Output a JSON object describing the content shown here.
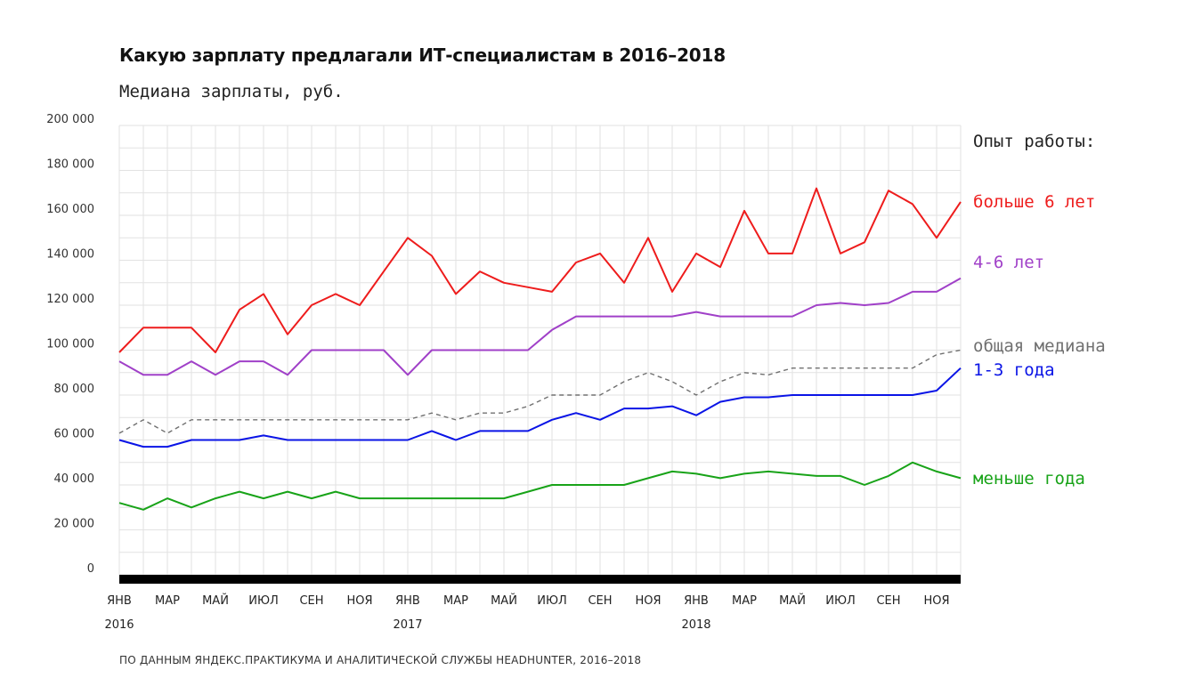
{
  "title": "Какую зарплату предлагали ИТ-специалистам в 2016–2018",
  "subtitle": "Медиана зарплаты, руб.",
  "source": "ПО ДАННЫМ ЯНДЕКС.ПРАКТИКУМА И АНАЛИТИЧЕСКОЙ СЛУЖБЫ HEADHUNTER, 2016–2018",
  "legend_title": "Опыт работы:",
  "chart_data": {
    "type": "line",
    "title": "Какую зарплату предлагали ИТ-специалистам в 2016–2018",
    "ylabel": "Медиана зарплаты, руб.",
    "ylim": [
      0,
      200000
    ],
    "yticks": [
      0,
      20000,
      40000,
      60000,
      80000,
      100000,
      120000,
      140000,
      160000,
      180000,
      200000
    ],
    "ytick_labels": [
      "0",
      "20 000",
      "40 000",
      "60 000",
      "80 000",
      "100 000",
      "120 000",
      "140 000",
      "160 000",
      "180 000",
      "200 000"
    ],
    "x": [
      "2016-01",
      "2016-02",
      "2016-03",
      "2016-04",
      "2016-05",
      "2016-06",
      "2016-07",
      "2016-08",
      "2016-09",
      "2016-10",
      "2016-11",
      "2016-12",
      "2017-01",
      "2017-02",
      "2017-03",
      "2017-04",
      "2017-05",
      "2017-06",
      "2017-07",
      "2017-08",
      "2017-09",
      "2017-10",
      "2017-11",
      "2017-12",
      "2018-01",
      "2018-02",
      "2018-03",
      "2018-04",
      "2018-05",
      "2018-06",
      "2018-07",
      "2018-08",
      "2018-09",
      "2018-10",
      "2018-11",
      "2018-12"
    ],
    "x_tick_labels": [
      {
        "x": "2016-01",
        "label": "ЯНВ",
        "year": "2016"
      },
      {
        "x": "2016-03",
        "label": "МАР"
      },
      {
        "x": "2016-05",
        "label": "МАЙ"
      },
      {
        "x": "2016-07",
        "label": "ИЮЛ"
      },
      {
        "x": "2016-09",
        "label": "СЕН"
      },
      {
        "x": "2016-11",
        "label": "НОЯ"
      },
      {
        "x": "2017-01",
        "label": "ЯНВ",
        "year": "2017"
      },
      {
        "x": "2017-03",
        "label": "МАР"
      },
      {
        "x": "2017-05",
        "label": "МАЙ"
      },
      {
        "x": "2017-07",
        "label": "ИЮЛ"
      },
      {
        "x": "2017-09",
        "label": "СЕН"
      },
      {
        "x": "2017-11",
        "label": "НОЯ"
      },
      {
        "x": "2018-01",
        "label": "ЯНВ",
        "year": "2018"
      },
      {
        "x": "2018-03",
        "label": "МАР"
      },
      {
        "x": "2018-05",
        "label": "МАЙ"
      },
      {
        "x": "2018-07",
        "label": "ИЮЛ"
      },
      {
        "x": "2018-09",
        "label": "СЕН"
      },
      {
        "x": "2018-11",
        "label": "НОЯ"
      }
    ],
    "grid": true,
    "legend_placement": "right",
    "series": [
      {
        "name": "больше 6 лет",
        "color": "#ee1c1c",
        "dashed": false,
        "values": [
          99000,
          110000,
          110000,
          110000,
          99000,
          118000,
          125000,
          107000,
          120000,
          125000,
          120000,
          135000,
          150000,
          142000,
          125000,
          135000,
          130000,
          128000,
          126000,
          139000,
          143000,
          130000,
          150000,
          126000,
          143000,
          137000,
          162000,
          143000,
          143000,
          172000,
          143000,
          148000,
          171000,
          165000,
          150000,
          166000
        ]
      },
      {
        "name": "4-6 лет",
        "color": "#a040c8",
        "dashed": false,
        "values": [
          95000,
          89000,
          89000,
          95000,
          89000,
          95000,
          95000,
          89000,
          100000,
          100000,
          100000,
          100000,
          89000,
          100000,
          100000,
          100000,
          100000,
          100000,
          109000,
          115000,
          115000,
          115000,
          115000,
          115000,
          117000,
          115000,
          115000,
          115000,
          115000,
          120000,
          121000,
          120000,
          121000,
          126000,
          126000,
          132000
        ]
      },
      {
        "name": "общая медиана",
        "color": "#707070",
        "dashed": true,
        "values": [
          63000,
          69000,
          63000,
          69000,
          69000,
          69000,
          69000,
          69000,
          69000,
          69000,
          69000,
          69000,
          69000,
          72000,
          69000,
          72000,
          72000,
          75000,
          80000,
          80000,
          80000,
          86000,
          90000,
          86000,
          80000,
          86000,
          90000,
          89000,
          92000,
          92000,
          92000,
          92000,
          92000,
          92000,
          98000,
          100000
        ]
      },
      {
        "name": "1-3 года",
        "color": "#0a14e6",
        "dashed": false,
        "values": [
          60000,
          57000,
          57000,
          60000,
          60000,
          60000,
          62000,
          60000,
          60000,
          60000,
          60000,
          60000,
          60000,
          64000,
          60000,
          64000,
          64000,
          64000,
          69000,
          72000,
          69000,
          74000,
          74000,
          75000,
          71000,
          77000,
          79000,
          79000,
          80000,
          80000,
          80000,
          80000,
          80000,
          80000,
          82000,
          92000
        ]
      },
      {
        "name": "меньше года",
        "color": "#18a318",
        "dashed": false,
        "values": [
          32000,
          29000,
          34000,
          30000,
          34000,
          37000,
          34000,
          37000,
          34000,
          37000,
          34000,
          34000,
          34000,
          34000,
          34000,
          34000,
          34000,
          37000,
          40000,
          40000,
          40000,
          40000,
          43000,
          46000,
          45000,
          43000,
          45000,
          46000,
          45000,
          44000,
          44000,
          40000,
          44000,
          50000,
          46000,
          43000
        ]
      }
    ]
  }
}
